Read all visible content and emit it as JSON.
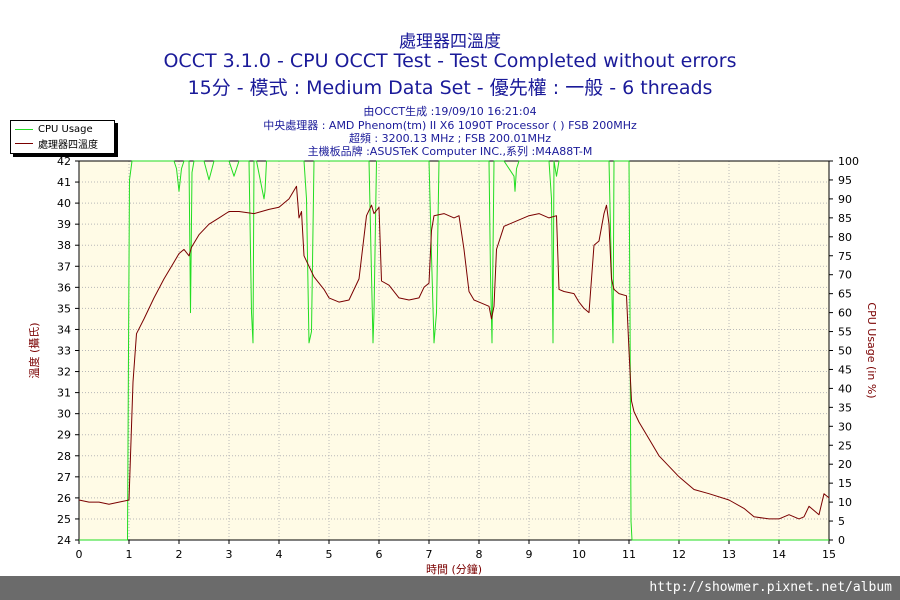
{
  "header": {
    "title_cn": "處理器四溫度",
    "title_main": "OCCT 3.1.0 - CPU OCCT Test - Test Completed without errors",
    "title_sub": "15分 - 模式 : Medium Data Set - 優先權 : 一般 - 6 threads",
    "info_generated": "由OCCT生成 :19/09/10 16:21:04",
    "info_cpu": "中央處理器 : AMD Phenom(tm) II X6 1090T Processor (    ) FSB 200MHz",
    "info_freq": "超頻 : 3200.13 MHz ; FSB 200.01MHz",
    "info_board": "主機板品牌 :ASUSTeK Computer INC.,系列 :M4A88T-M"
  },
  "legend": {
    "items": [
      {
        "label": "CPU Usage",
        "color": "#22dd22"
      },
      {
        "label": "處理器四溫度",
        "color": "#7a0000"
      }
    ]
  },
  "footer": {
    "url": "http://showmer.pixnet.net/album"
  },
  "chart_data": {
    "type": "line",
    "xlabel": "時間 (分鐘)",
    "ylabel_left": "溫度 (攝氏)",
    "ylabel_right": "CPU Usage (in %)",
    "xlim": [
      0,
      15
    ],
    "ylim_left": [
      24,
      42
    ],
    "ylim_right": [
      0,
      100
    ],
    "x_ticks": [
      "0",
      "1",
      "2",
      "3",
      "4",
      "5",
      "6",
      "7",
      "8",
      "9",
      "10",
      "11",
      "12",
      "13",
      "14",
      "15"
    ],
    "y_left_ticks": [
      "24",
      "25",
      "26",
      "27",
      "28",
      "29",
      "30",
      "31",
      "32",
      "33",
      "34",
      "35",
      "36",
      "37",
      "38",
      "39",
      "40",
      "41",
      "42"
    ],
    "y_right_ticks": [
      "0",
      "5",
      "10",
      "15",
      "20",
      "25",
      "30",
      "35",
      "40",
      "45",
      "50",
      "55",
      "60",
      "65",
      "70",
      "75",
      "80",
      "85",
      "90",
      "95",
      "100"
    ],
    "grid": true,
    "background": "#fffbe6",
    "series": [
      {
        "name": "處理器四溫度",
        "axis": "left",
        "color": "#7a0000",
        "x": [
          0,
          0.2,
          0.4,
          0.6,
          0.8,
          1.0,
          1.03,
          1.08,
          1.15,
          1.3,
          1.5,
          1.7,
          1.9,
          2.0,
          2.1,
          2.2,
          2.25,
          2.4,
          2.6,
          2.8,
          3.0,
          3.2,
          3.5,
          3.8,
          4.0,
          4.2,
          4.35,
          4.4,
          4.45,
          4.5,
          4.6,
          4.7,
          4.9,
          5.0,
          5.2,
          5.4,
          5.6,
          5.75,
          5.85,
          5.9,
          6.0,
          6.05,
          6.2,
          6.4,
          6.6,
          6.8,
          6.9,
          7.0,
          7.05,
          7.1,
          7.3,
          7.5,
          7.6,
          7.7,
          7.8,
          7.9,
          8.0,
          8.2,
          8.25,
          8.3,
          8.35,
          8.5,
          8.7,
          9.0,
          9.2,
          9.4,
          9.55,
          9.6,
          9.7,
          9.9,
          10.0,
          10.1,
          10.2,
          10.3,
          10.4,
          10.5,
          10.55,
          10.6,
          10.65,
          10.7,
          10.8,
          10.95,
          11.0,
          11.05,
          11.1,
          11.2,
          11.4,
          11.6,
          11.8,
          12.0,
          12.3,
          12.6,
          13.0,
          13.3,
          13.5,
          13.8,
          14.0,
          14.2,
          14.4,
          14.5,
          14.6,
          14.8,
          14.9,
          15.0
        ],
        "y": [
          25.9,
          25.8,
          25.8,
          25.7,
          25.8,
          25.9,
          28.0,
          31.5,
          33.8,
          34.5,
          35.5,
          36.4,
          37.2,
          37.6,
          37.8,
          37.5,
          37.9,
          38.5,
          39.0,
          39.3,
          39.6,
          39.6,
          39.5,
          39.7,
          39.8,
          40.2,
          40.8,
          39.3,
          39.6,
          37.5,
          37.0,
          36.5,
          35.9,
          35.5,
          35.3,
          35.4,
          36.4,
          39.4,
          39.9,
          39.5,
          39.8,
          36.3,
          36.1,
          35.5,
          35.4,
          35.5,
          36.0,
          36.2,
          38.7,
          39.4,
          39.5,
          39.3,
          39.4,
          37.8,
          35.8,
          35.4,
          35.3,
          35.1,
          34.5,
          35.1,
          37.8,
          38.9,
          39.1,
          39.4,
          39.5,
          39.3,
          39.4,
          35.9,
          35.8,
          35.7,
          35.3,
          35.0,
          34.8,
          38.0,
          38.2,
          39.5,
          39.9,
          39.0,
          36.4,
          35.9,
          35.7,
          35.6,
          33.0,
          30.6,
          30.1,
          29.6,
          28.8,
          28.0,
          27.5,
          27.0,
          26.4,
          26.2,
          25.9,
          25.5,
          25.1,
          25.0,
          25.0,
          25.2,
          25.0,
          25.1,
          25.6,
          25.2,
          26.2,
          26.0
        ]
      },
      {
        "name": "CPU Usage",
        "axis": "right",
        "color": "#22dd22",
        "x": [
          0,
          0.97,
          0.99,
          1.01,
          1.04,
          1.06,
          1.1,
          1.5,
          1.9,
          1.95,
          2.0,
          2.05,
          2.1,
          2.2,
          2.23,
          2.26,
          2.3,
          2.5,
          2.6,
          2.7,
          3.0,
          3.1,
          3.2,
          3.4,
          3.45,
          3.48,
          3.5,
          3.55,
          3.7,
          3.72,
          3.75,
          3.8,
          4.5,
          4.55,
          4.6,
          4.65,
          4.7,
          5.0,
          5.5,
          5.8,
          5.85,
          5.88,
          5.9,
          5.95,
          6.0,
          6.5,
          7.0,
          7.05,
          7.1,
          7.15,
          7.2,
          7.5,
          8.0,
          8.2,
          8.23,
          8.26,
          8.3,
          8.5,
          8.7,
          8.72,
          8.75,
          8.8,
          9.0,
          9.4,
          9.45,
          9.48,
          9.5,
          9.55,
          9.6,
          10.0,
          10.6,
          10.65,
          10.68,
          10.7,
          10.75,
          10.9,
          11.0,
          11.02,
          11.04,
          11.06,
          15.0
        ],
        "y": [
          0,
          0,
          50,
          95,
          98,
          100,
          100,
          100,
          100,
          98,
          92,
          98,
          100,
          100,
          60,
          97,
          100,
          100,
          95,
          100,
          100,
          96,
          100,
          100,
          60,
          52,
          100,
          100,
          90,
          92,
          100,
          100,
          100,
          90,
          52,
          55,
          100,
          100,
          100,
          100,
          70,
          52,
          60,
          100,
          100,
          100,
          100,
          75,
          52,
          60,
          100,
          100,
          100,
          100,
          70,
          52,
          100,
          100,
          96,
          92,
          98,
          100,
          100,
          100,
          90,
          52,
          100,
          96,
          100,
          100,
          100,
          70,
          52,
          100,
          100,
          100,
          100,
          60,
          5,
          0,
          0
        ]
      }
    ]
  }
}
